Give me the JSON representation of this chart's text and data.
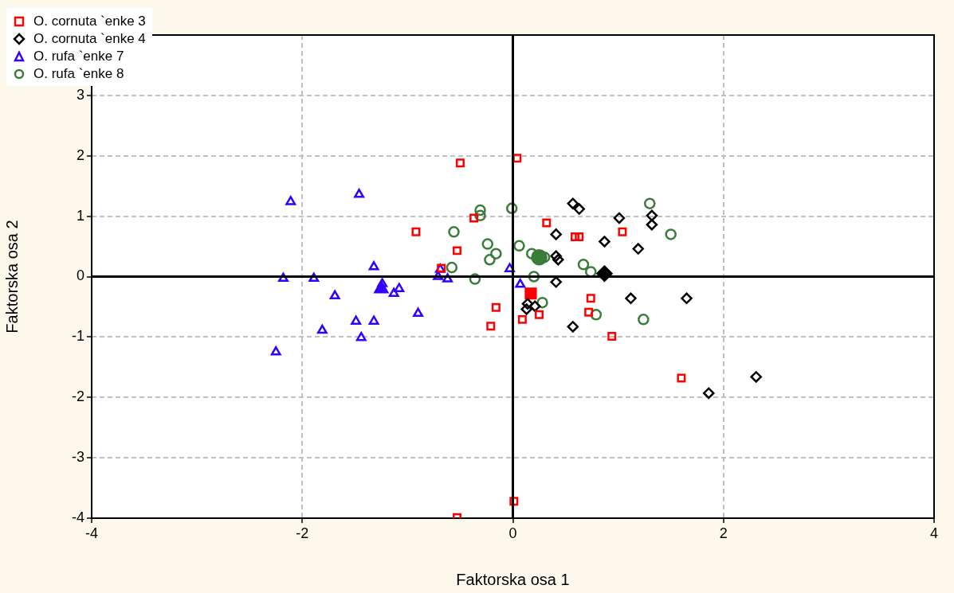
{
  "chart_data": {
    "type": "scatter",
    "xlabel": "Faktorska osa 1",
    "ylabel": "Faktorska osa 2",
    "xlim": [
      -4,
      4
    ],
    "xticks": [
      -4,
      -2,
      0,
      2,
      4
    ],
    "ylim": [
      -4,
      4
    ],
    "yticks": [
      -4,
      -3,
      -2,
      -1,
      0,
      1,
      2,
      3,
      {
        "value": 4,
        "label": null
      }
    ],
    "grid": true,
    "legend": "top left",
    "series": [
      {
        "name": "O. cornuta `enke 3",
        "color": "#ff0000",
        "marker": "square",
        "x": [
          -0.5,
          0.04,
          -0.92,
          -0.37,
          -0.53,
          -0.68,
          0.32,
          0.59,
          0.63,
          1.04,
          -0.16,
          -0.21,
          0.09,
          0.25,
          0.74,
          0.72,
          0.94,
          1.6,
          0.01,
          -0.53
        ],
        "values": [
          1.88,
          1.96,
          0.74,
          0.97,
          0.43,
          0.14,
          0.89,
          0.66,
          0.66,
          0.74,
          -0.51,
          -0.82,
          -0.71,
          -0.63,
          -0.36,
          -0.59,
          -0.99,
          -1.68,
          -3.72,
          -3.99
        ]
      },
      {
        "name": "O. cornuta `enke 4",
        "color": "#000000",
        "marker": "diamond",
        "x": [
          0.57,
          0.63,
          1.01,
          1.32,
          1.32,
          0.41,
          0.87,
          1.19,
          0.41,
          0.43,
          0.41,
          0.14,
          0.13,
          0.21,
          0.57,
          1.12,
          1.65,
          1.86,
          2.31
        ],
        "values": [
          1.21,
          1.12,
          0.97,
          1.01,
          0.86,
          0.7,
          0.58,
          0.46,
          0.34,
          0.28,
          -0.09,
          -0.45,
          -0.54,
          -0.49,
          -0.83,
          -0.36,
          -0.36,
          -1.93,
          -1.66
        ]
      },
      {
        "name": "O. rufa `enke 7",
        "color": "#3300ff",
        "marker": "triangle",
        "x": [
          -2.11,
          -1.46,
          -2.18,
          -1.89,
          -1.32,
          -1.69,
          -1.24,
          -1.08,
          -1.13,
          -1.81,
          -1.49,
          -1.32,
          -1.44,
          -0.9,
          -2.25,
          -0.69,
          -0.71,
          -0.62,
          -0.03,
          0.07
        ],
        "values": [
          1.24,
          1.36,
          -0.03,
          -0.03,
          0.16,
          -0.32,
          -0.12,
          -0.2,
          -0.28,
          -0.89,
          -0.74,
          -0.74,
          -1.01,
          -0.61,
          -1.25,
          0.12,
          0,
          -0.04,
          0.13,
          -0.13
        ]
      },
      {
        "name": "O. rufa `enke 8",
        "color": "#3a7d3a",
        "marker": "circle",
        "x": [
          -0.31,
          -0.31,
          -0.01,
          -0.56,
          -0.24,
          -0.16,
          -0.22,
          -0.58,
          -0.36,
          0.06,
          0.18,
          0.3,
          0.2,
          0.28,
          0.67,
          0.74,
          1.3,
          1.5,
          0.79,
          1.24
        ],
        "values": [
          1.1,
          1.01,
          1.13,
          0.74,
          0.54,
          0.38,
          0.28,
          0.15,
          -0.04,
          0.51,
          0.38,
          0.32,
          0,
          -0.43,
          0.2,
          0.08,
          1.21,
          0.7,
          -0.63,
          -0.71
        ]
      },
      {
        "color": "#ff0000",
        "marker": "square",
        "x": [
          0.17
        ],
        "values": [
          -0.28
        ]
      },
      {
        "color": "#000000",
        "marker": "diamond",
        "x": [
          0.87
        ],
        "values": [
          0.05
        ]
      },
      {
        "color": "#3300ff",
        "marker": "triangle",
        "x": [
          -1.25
        ],
        "values": [
          -0.2
        ]
      },
      {
        "color": "#3a7d3a",
        "marker": "circle",
        "x": [
          0.25
        ],
        "values": [
          0.32
        ]
      }
    ]
  }
}
